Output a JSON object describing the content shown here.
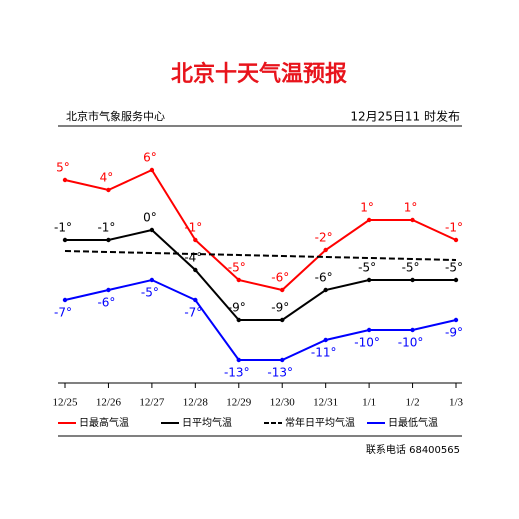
{
  "chart_data": {
    "type": "line",
    "title": "北京十天气温预报",
    "source": "北京市气象服务中心",
    "issued": "12月25日11 时发布",
    "contact": "联系电话 68400565",
    "categories": [
      "12/25",
      "12/26",
      "12/27",
      "12/28",
      "12/29",
      "12/30",
      "12/31",
      "1/1",
      "1/2",
      "1/3"
    ],
    "series": [
      {
        "name": "日最高气温",
        "color": "#ff0000",
        "dash": false,
        "label_side": "above",
        "values": [
          5,
          4,
          6,
          -1,
          -5,
          -6,
          -2,
          1,
          1,
          -1
        ],
        "value_labels": [
          "5°",
          "4°",
          "6°",
          "-1°",
          "-5°",
          "-6°",
          "-2°",
          "1°",
          "1°",
          "-1°"
        ]
      },
      {
        "name": "日平均气温",
        "color": "#000000",
        "dash": false,
        "label_side": "above",
        "values": [
          -1,
          -1,
          0,
          -4,
          -9,
          -9,
          -6,
          -5,
          -5,
          -5
        ],
        "value_labels": [
          "-1°",
          "-1°",
          "0°",
          "-4°",
          "-9°",
          "-9°",
          "-6°",
          "-5°",
          "-5°",
          "-5°"
        ]
      },
      {
        "name": "常年日平均气温",
        "color": "#000000",
        "dash": true,
        "values": [
          -2.1,
          -2.2,
          -2.3,
          -2.4,
          -2.5,
          -2.6,
          -2.7,
          -2.8,
          -2.9,
          -3.0
        ]
      },
      {
        "name": "日最低气温",
        "color": "#0000ff",
        "dash": false,
        "label_side": "below",
        "values": [
          -7,
          -6,
          -5,
          -7,
          -13,
          -13,
          -11,
          -10,
          -10,
          -9
        ],
        "value_labels": [
          "-7°",
          "-6°",
          "-5°",
          "-7°",
          "-13°",
          "-13°",
          "-11°",
          "-10°",
          "-10°",
          "-9°"
        ]
      }
    ]
  }
}
